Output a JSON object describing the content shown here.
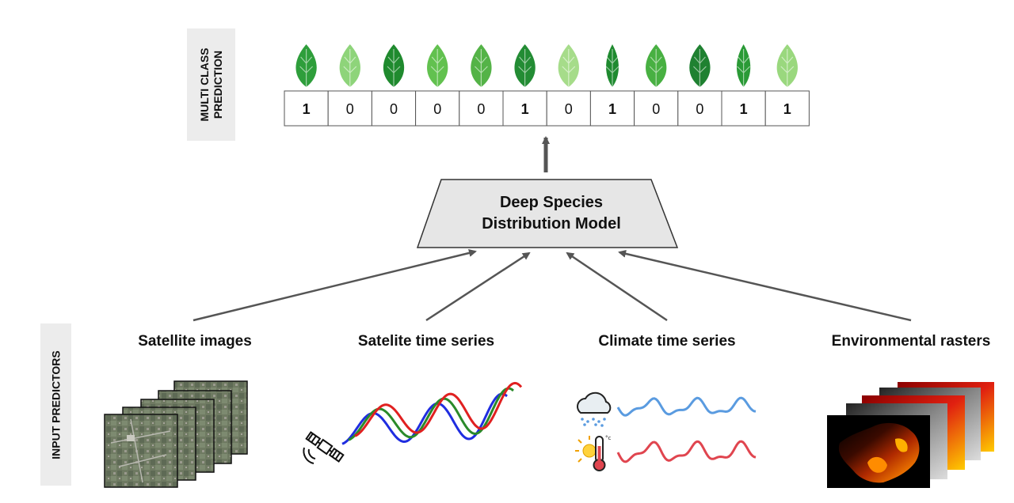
{
  "multi_class_label": [
    "MULTI CLASS",
    "PREDICTION"
  ],
  "input_predictors_label": "INPUT PREDICTORS",
  "prediction_values": [
    "1",
    "0",
    "0",
    "0",
    "0",
    "1",
    "0",
    "1",
    "0",
    "0",
    "1",
    "1"
  ],
  "model": {
    "line1": "Deep Species",
    "line2": "Distribution Model"
  },
  "predictors": [
    {
      "label": "Satellite images"
    },
    {
      "label": "Satelite time series"
    },
    {
      "label": "Climate time series"
    },
    {
      "label": "Environmental rasters"
    }
  ],
  "climate_icons": {
    "weather": "rain-cloud-icon",
    "temperature": "thermometer-sun-icon"
  },
  "satellite_icon": "satellite-icon",
  "colors": {
    "arrow": "#555555",
    "model_fill": "#e6e6e6",
    "leaf_greens": [
      "#2e9e3b",
      "#8ed47a",
      "#1f8a2e",
      "#62c14f",
      "#54b347",
      "#238c34",
      "#a6dc8a",
      "#1e8a2f",
      "#48b042",
      "#1f8131",
      "#2a9a36",
      "#9ad87e"
    ],
    "series_red": "#e02020",
    "series_green": "#2a8a2a",
    "series_blue": "#1f2de0",
    "climate_blue": "#5a9be0",
    "climate_red": "#e0454f"
  }
}
